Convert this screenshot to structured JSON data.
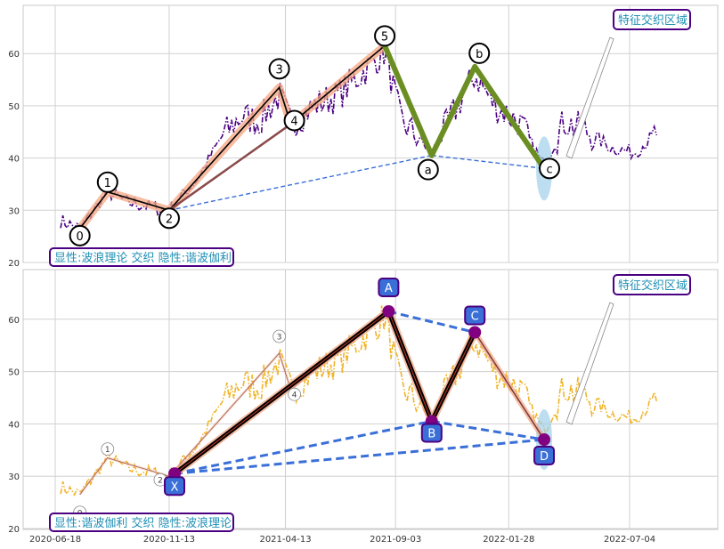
{
  "colors": {
    "price_top": "#4b0082",
    "price_bottom": "#f0b429",
    "wave_halo": "#f4a582",
    "wave_core": "#000000",
    "corrective": "#6b8e23",
    "link_line": "#8b4a4a",
    "dashed_blue": "#3a6fd8",
    "harmonic_thick": "#000000",
    "harmonic_inner": "#c0392b",
    "harmonic_node": "#800080",
    "label_box_fill": "#3a6fd8",
    "label_box_edge": "#4b0082",
    "note_text": "#1f8fb5",
    "ellipse": "#9fd0ea",
    "grid": "#d0d0d0"
  },
  "chart_data": [
    {
      "type": "line",
      "panel": "top",
      "ylim": [
        20,
        68
      ],
      "yticks": [
        "20",
        "30",
        "40",
        "50",
        "60"
      ],
      "xticks": [],
      "annotation_box": "显性:波浪理论 交织 隐性:谐波伽利",
      "region_label": "特征交织区域",
      "wave_points": [
        {
          "label": "0",
          "x": "2020-07-20",
          "y": 26.5
        },
        {
          "label": "1",
          "x": "2020-08-25",
          "y": 33.5
        },
        {
          "label": "2",
          "x": "2020-11-13",
          "y": 30.0
        },
        {
          "label": "3",
          "x": "2021-04-05",
          "y": 53.5
        },
        {
          "label": "4",
          "x": "2021-04-20",
          "y": 46.5
        },
        {
          "label": "5",
          "x": "2021-08-20",
          "y": 61.5
        },
        {
          "label": "a",
          "x": "2021-10-20",
          "y": 40.5
        },
        {
          "label": "b",
          "x": "2021-12-15",
          "y": 57.5
        },
        {
          "label": "c",
          "x": "2022-03-15",
          "y": 38.0
        }
      ]
    },
    {
      "type": "line",
      "panel": "bottom",
      "ylim": [
        20,
        68
      ],
      "yticks": [
        "20",
        "30",
        "40",
        "50",
        "60"
      ],
      "xticks": [
        "2020-06-18",
        "2020-11-13",
        "2021-04-13",
        "2021-09-03",
        "2022-01-28",
        "2022-07-04"
      ],
      "annotation_box": "显性:谐波伽利 交织 隐性:波浪理论",
      "region_label": "特征交织区域",
      "harmonic_points": [
        {
          "label": "X",
          "x": "2020-11-20",
          "y": 30.5
        },
        {
          "label": "A",
          "x": "2021-08-25",
          "y": 61.5
        },
        {
          "label": "B",
          "x": "2021-10-20",
          "y": 40.5
        },
        {
          "label": "C",
          "x": "2021-12-15",
          "y": 57.5
        },
        {
          "label": "D",
          "x": "2022-03-15",
          "y": 37.0
        }
      ],
      "faint_wave_labels": [
        "0",
        "1",
        "2",
        "3",
        "4"
      ]
    }
  ]
}
